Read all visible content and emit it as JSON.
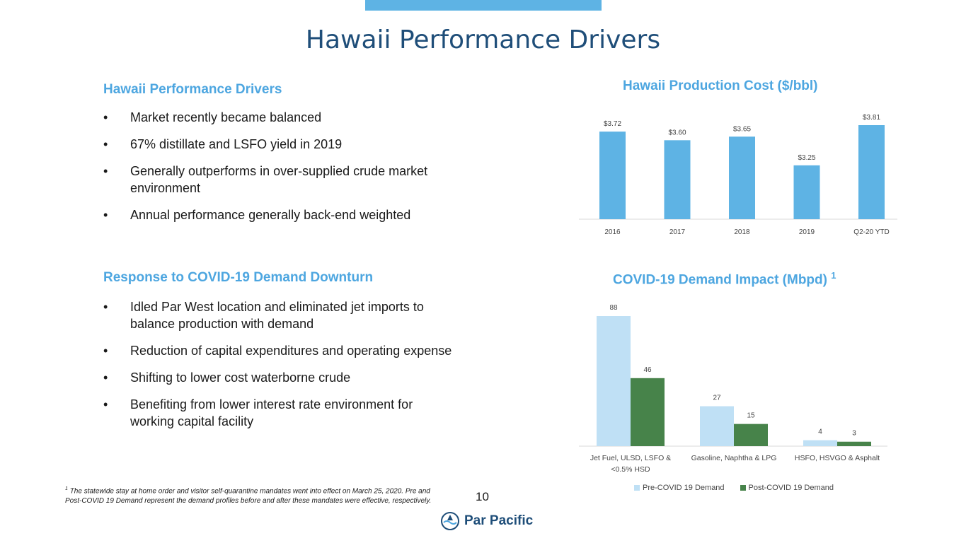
{
  "slide": {
    "title": "Hawaii Performance Drivers",
    "page_number": "10"
  },
  "left_top": {
    "heading": "Hawaii Performance Drivers",
    "bullets": [
      "Market recently became balanced",
      "67% distillate and LSFO yield in 2019",
      "Generally outperforms in over-supplied crude market environment",
      "Annual performance generally back-end weighted"
    ]
  },
  "left_bottom": {
    "heading": "Response to COVID-19 Demand Downturn",
    "bullets": [
      "Idled Par West location and eliminated jet imports to balance production with demand",
      "Reduction of capital expenditures and operating expense",
      "Shifting to lower cost waterborne crude",
      "Benefiting from lower interest rate environment for working capital facility"
    ]
  },
  "chart_data": [
    {
      "type": "bar",
      "title": "Hawaii Production Cost ($/bbl)",
      "categories": [
        "2016",
        "2017",
        "2018",
        "2019",
        "Q2-20 YTD"
      ],
      "values": [
        3.72,
        3.6,
        3.65,
        3.25,
        3.81
      ],
      "data_labels": [
        "$3.72",
        "$3.60",
        "$3.65",
        "$3.25",
        "$3.81"
      ],
      "color": "#5eb3e4",
      "grid": false,
      "legend": "none"
    },
    {
      "type": "bar",
      "title": "COVID-19 Demand Impact (Mbpd)",
      "title_superscript": "1",
      "categories": [
        "Jet Fuel, ULSD, LSFO & <0.5% HSD",
        "Gasoline, Naphtha & LPG",
        "HSFO, HSVGO & Asphalt"
      ],
      "category_lines": [
        [
          "Jet Fuel, ULSD, LSFO &",
          "<0.5% HSD"
        ],
        [
          "Gasoline, Naphtha & LPG"
        ],
        [
          "HSFO, HSVGO & Asphalt"
        ]
      ],
      "series": [
        {
          "name": "Pre-COVID 19 Demand",
          "values": [
            88,
            27,
            4
          ],
          "color": "#bfe0f5"
        },
        {
          "name": "Post-COVID 19 Demand",
          "values": [
            46,
            15,
            3
          ],
          "color": "#47834a"
        }
      ],
      "grid": false,
      "legend": "bottom"
    }
  ],
  "footnote": {
    "marker": "1",
    "text": "The statewide stay at home order and visitor self-quarantine mandates went into effect on March 25, 2020. Pre and Post-COVID 19 Demand represent the demand profiles before and after these mandates were effective, respectively."
  },
  "logo": {
    "text": "Par Pacific",
    "icon": "par-pacific-logo-icon"
  }
}
